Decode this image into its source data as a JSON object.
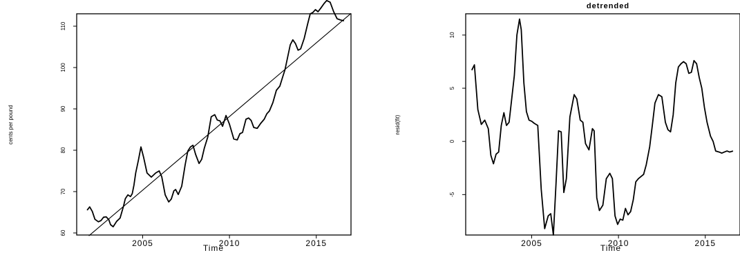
{
  "chart_data": [
    {
      "type": "line",
      "title": "",
      "xlabel": "Time",
      "ylabel": "cents per pound",
      "xlim": [
        2001.2,
        2017.0
      ],
      "ylim": [
        59.5,
        113.0
      ],
      "xticks": [
        2005,
        2010,
        2015
      ],
      "yticks": [
        60,
        70,
        80,
        90,
        100,
        110
      ],
      "series": [
        {
          "x": [
            2001.8,
            2001.95,
            2002.1,
            2002.25,
            2002.45,
            2002.6,
            2002.75,
            2002.9,
            2003.05,
            2003.15,
            2003.3,
            2003.5,
            2003.7,
            2003.9,
            2004.0,
            2004.15,
            2004.3,
            2004.4,
            2004.5,
            2004.6,
            2004.75,
            2004.9,
            2005.05,
            2005.25,
            2005.5,
            2005.75,
            2005.95,
            2006.1,
            2006.3,
            2006.5,
            2006.65,
            2006.8,
            2006.9,
            2007.05,
            2007.25,
            2007.45,
            2007.6,
            2007.75,
            2007.9,
            2008.05,
            2008.25,
            2008.4,
            2008.55,
            2008.75,
            2008.95,
            2009.15,
            2009.3,
            2009.45,
            2009.6,
            2009.8,
            2010.0,
            2010.25,
            2010.45,
            2010.6,
            2010.75,
            2010.95,
            2011.1,
            2011.25,
            2011.4,
            2011.6,
            2011.8,
            2012.0,
            2012.15,
            2012.3,
            2012.5,
            2012.7,
            2012.9,
            2013.05,
            2013.2,
            2013.35,
            2013.5,
            2013.65,
            2013.8,
            2013.95,
            2014.1,
            2014.3,
            2014.5,
            2014.65,
            2014.8,
            2014.95,
            2015.1,
            2015.25,
            2015.45,
            2015.6,
            2015.8,
            2016.0,
            2016.2,
            2016.4,
            2016.6
          ],
          "y": [
            65.5,
            66.3,
            65.2,
            63.3,
            62.7,
            63.0,
            63.8,
            63.9,
            63.2,
            62.0,
            61.5,
            62.8,
            63.6,
            66.5,
            68.3,
            69.2,
            68.8,
            69.5,
            71.6,
            74.5,
            77.5,
            80.8,
            78.4,
            74.5,
            73.5,
            74.5,
            75.0,
            73.6,
            69.2,
            67.5,
            68.2,
            70.2,
            70.5,
            69.3,
            71.3,
            76.5,
            79.8,
            80.8,
            81.2,
            79.0,
            76.8,
            77.8,
            80.5,
            83.2,
            88.1,
            88.6,
            87.3,
            87.1,
            85.8,
            88.4,
            86.3,
            82.7,
            82.5,
            84.0,
            84.3,
            87.5,
            87.8,
            87.2,
            85.5,
            85.3,
            86.5,
            87.5,
            88.8,
            89.5,
            91.5,
            94.5,
            95.5,
            97.5,
            99.5,
            102.5,
            105.5,
            106.7,
            105.8,
            104.2,
            104.5,
            107.0,
            110.5,
            113.0,
            113.3,
            114.0,
            113.5,
            114.3,
            115.5,
            116.2,
            115.8,
            113.5,
            111.8,
            111.5,
            111.3
          ]
        },
        {
          "x": [
            2001.9,
            2017.0
          ],
          "y": [
            59.3,
            113.1
          ]
        }
      ]
    },
    {
      "type": "line",
      "title": "detrended",
      "xlabel": "Time",
      "ylabel": "resid(fit)",
      "xlim": [
        2001.2,
        2017.0
      ],
      "ylim": [
        -8.8,
        12.0
      ],
      "xticks": [
        2005,
        2010,
        2015
      ],
      "yticks": [
        -5,
        0,
        5,
        10
      ],
      "series": [
        {
          "x": [
            2001.55,
            2001.7,
            2001.9,
            2002.1,
            2002.3,
            2002.5,
            2002.65,
            2002.8,
            2002.95,
            2003.1,
            2003.25,
            2003.4,
            2003.55,
            2003.7,
            2003.85,
            2004.0,
            2004.15,
            2004.3,
            2004.4,
            2004.55,
            2004.7,
            2004.85,
            2005.0,
            2005.15,
            2005.35,
            2005.55,
            2005.75,
            2005.95,
            2006.1,
            2006.25,
            2006.4,
            2006.55,
            2006.7,
            2006.85,
            2007.0,
            2007.2,
            2007.45,
            2007.6,
            2007.8,
            2007.95,
            2008.1,
            2008.3,
            2008.5,
            2008.6,
            2008.75,
            2008.9,
            2009.1,
            2009.3,
            2009.5,
            2009.65,
            2009.8,
            2009.95,
            2010.1,
            2010.25,
            2010.4,
            2010.55,
            2010.7,
            2010.85,
            2011.0,
            2011.15,
            2011.3,
            2011.45,
            2011.6,
            2011.8,
            2011.95,
            2012.1,
            2012.3,
            2012.5,
            2012.7,
            2012.85,
            2013.0,
            2013.15,
            2013.3,
            2013.45,
            2013.6,
            2013.75,
            2013.9,
            2014.05,
            2014.2,
            2014.35,
            2014.5,
            2014.65,
            2014.8,
            2014.95,
            2015.1,
            2015.3,
            2015.45,
            2015.6,
            2015.8,
            2015.95,
            2016.1,
            2016.25,
            2016.4,
            2016.6
          ],
          "y": [
            6.7,
            7.2,
            3.0,
            1.6,
            2.0,
            1.2,
            -1.3,
            -2.1,
            -1.2,
            -1.0,
            1.5,
            2.7,
            1.5,
            1.8,
            4.0,
            6.2,
            10.0,
            11.5,
            10.5,
            5.5,
            2.8,
            2.0,
            1.9,
            1.7,
            1.5,
            -4.5,
            -8.2,
            -7.0,
            -6.8,
            -8.8,
            -4.0,
            1.0,
            0.9,
            -4.8,
            -3.5,
            2.3,
            4.4,
            4.0,
            2.0,
            1.8,
            -0.2,
            -0.8,
            1.2,
            1.0,
            -5.3,
            -6.5,
            -6.0,
            -3.5,
            -3.0,
            -3.5,
            -7.0,
            -7.8,
            -7.3,
            -7.4,
            -6.3,
            -6.9,
            -6.6,
            -5.5,
            -3.8,
            -3.5,
            -3.3,
            -3.1,
            -2.2,
            -0.5,
            1.5,
            3.6,
            4.4,
            4.2,
            1.8,
            1.1,
            0.9,
            2.5,
            5.5,
            7.0,
            7.3,
            7.5,
            7.3,
            6.4,
            6.5,
            7.6,
            7.3,
            6.0,
            5.0,
            3.2,
            1.8,
            0.5,
            0.0,
            -0.9,
            -1.0,
            -1.1,
            -1.0,
            -0.9,
            -1.0,
            -0.9
          ]
        }
      ]
    }
  ]
}
